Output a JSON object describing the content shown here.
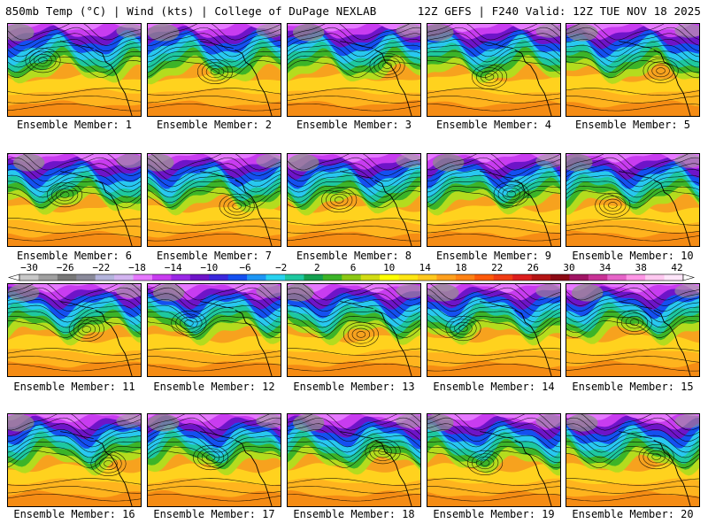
{
  "header": {
    "left": "850mb Temp (°C) | Wind (kts) | College of DuPage NEXLAB",
    "right": "12Z GEFS | F240 Valid: 12Z TUE NOV 18 2025"
  },
  "panels": [
    {
      "label": "Ensemble Member: 1"
    },
    {
      "label": "Ensemble Member: 2"
    },
    {
      "label": "Ensemble Member: 3"
    },
    {
      "label": "Ensemble Member: 4"
    },
    {
      "label": "Ensemble Member: 5"
    },
    {
      "label": "Ensemble Member: 6"
    },
    {
      "label": "Ensemble Member: 7"
    },
    {
      "label": "Ensemble Member: 8"
    },
    {
      "label": "Ensemble Member: 9"
    },
    {
      "label": "Ensemble Member: 10"
    },
    {
      "label": "Ensemble Member: 11"
    },
    {
      "label": "Ensemble Member: 12"
    },
    {
      "label": "Ensemble Member: 13"
    },
    {
      "label": "Ensemble Member: 14"
    },
    {
      "label": "Ensemble Member: 15"
    },
    {
      "label": "Ensemble Member: 16"
    },
    {
      "label": "Ensemble Member: 17"
    },
    {
      "label": "Ensemble Member: 18"
    },
    {
      "label": "Ensemble Member: 19"
    },
    {
      "label": "Ensemble Member: 20"
    }
  ],
  "colorbar": {
    "tick_labels": [
      "−30",
      "−26",
      "−22",
      "−18",
      "−14",
      "−10",
      "−6",
      "−2",
      "2",
      "6",
      "10",
      "14",
      "18",
      "22",
      "26",
      "30",
      "34",
      "38",
      "42"
    ],
    "colors": [
      "#c8c8c8",
      "#a0a0a0",
      "#787878",
      "#8a8a9a",
      "#b4b4dc",
      "#d2b4f0",
      "#e678ff",
      "#c83cf0",
      "#9a28e6",
      "#6e14c8",
      "#3c28dc",
      "#1450f0",
      "#1e96f5",
      "#28d2f0",
      "#1ec8a0",
      "#14a050",
      "#3cb428",
      "#8cc814",
      "#d2dc14",
      "#ffff00",
      "#ffe614",
      "#ffc81e",
      "#ffa01e",
      "#ff8214",
      "#ff5a0a",
      "#f03c14",
      "#dc1e1e",
      "#b41414",
      "#8c0a14",
      "#a01464",
      "#c83296",
      "#e664c8",
      "#ff96e6",
      "#ffc8f0",
      "#ffe6fa"
    ]
  }
}
